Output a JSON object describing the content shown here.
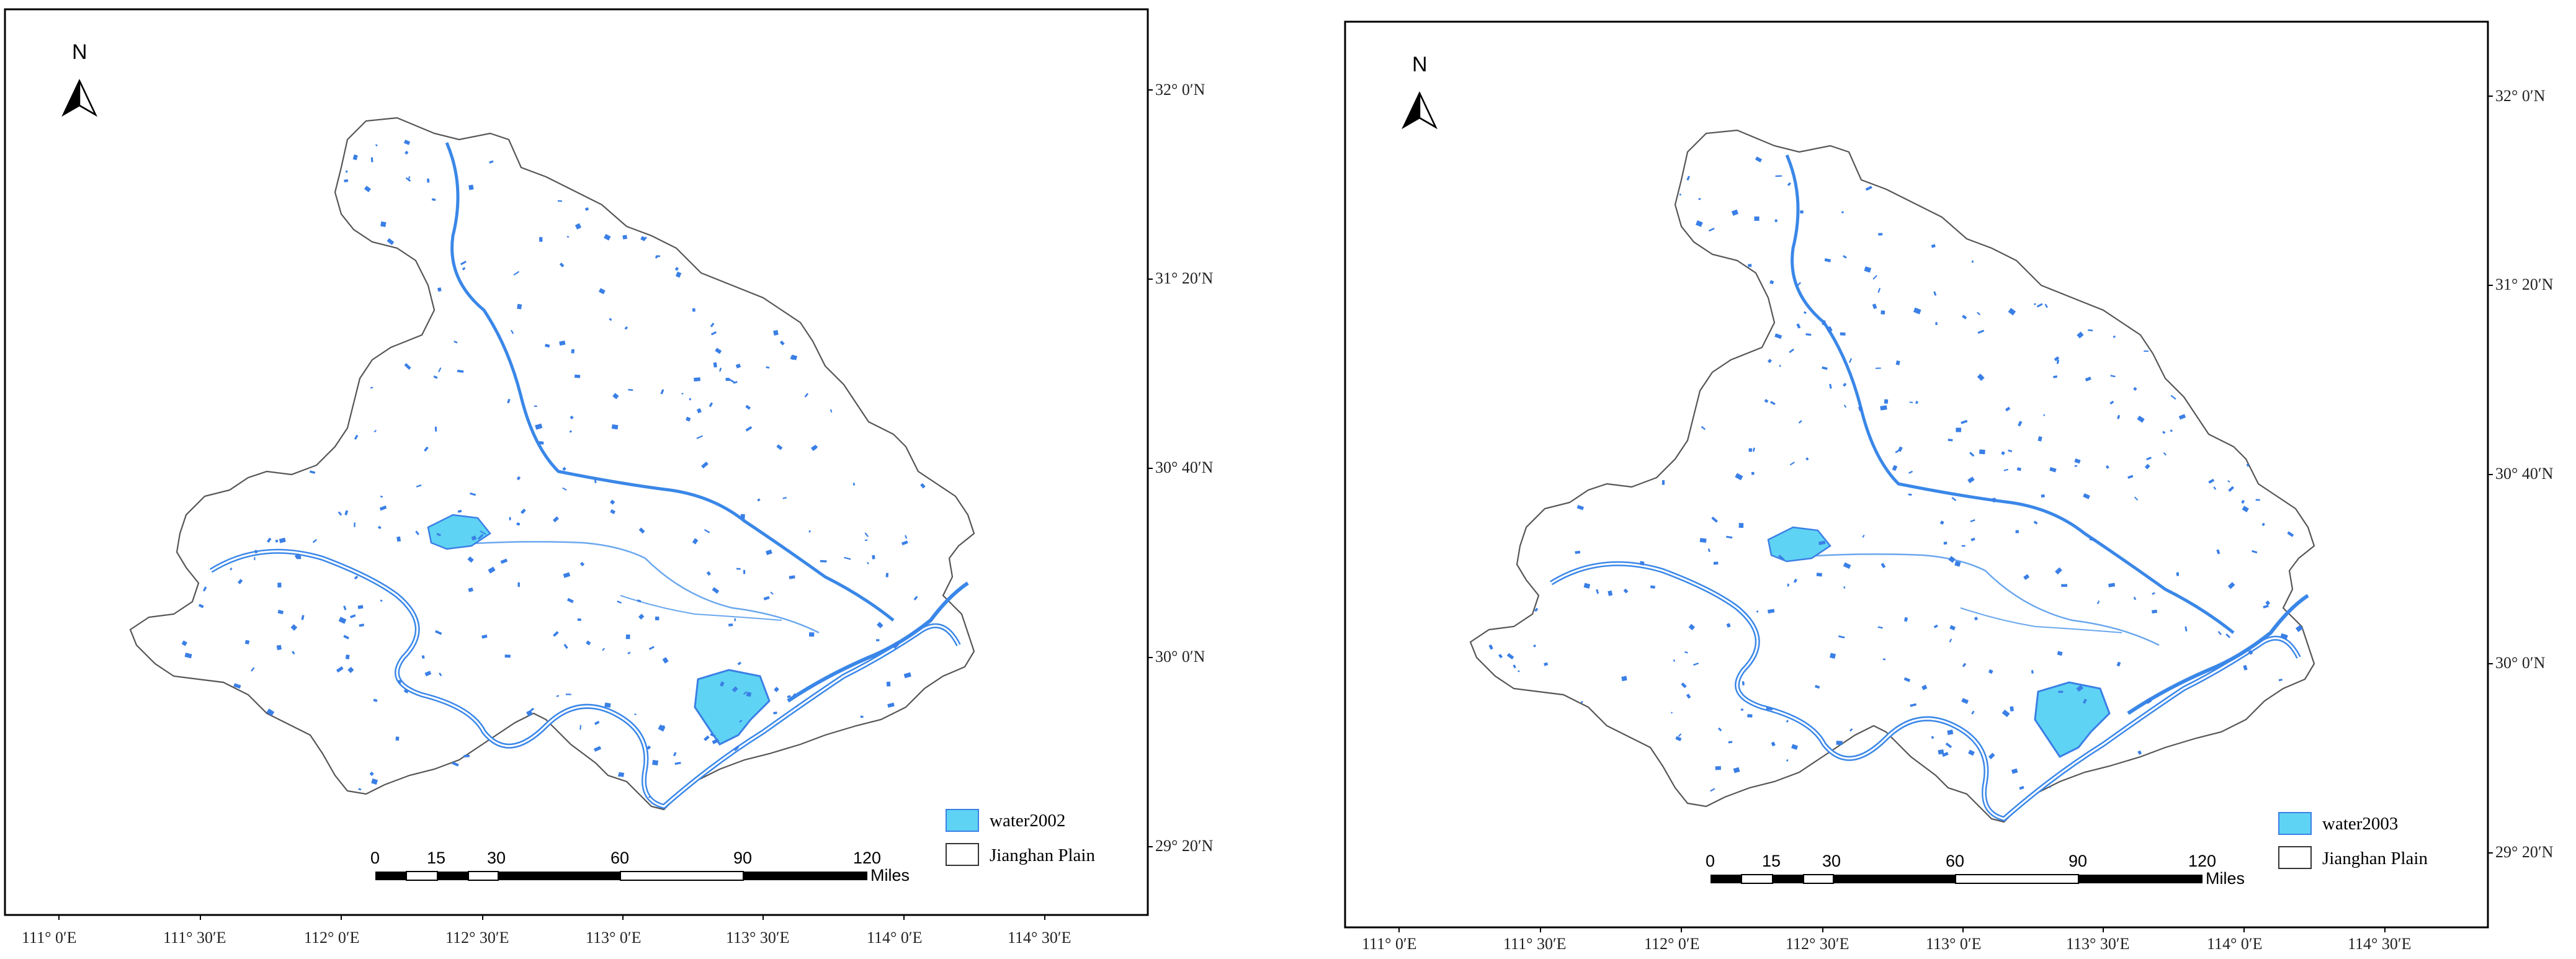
{
  "colors": {
    "water_fill": "#5fd3f3",
    "water_body": "#3a7fe6",
    "river": "#3a87e8",
    "boundary": "#555555",
    "frame": "#000000"
  },
  "icons": {
    "north_arrow": "north-arrow-icon"
  },
  "panels": [
    {
      "north_label": "N",
      "lat_labels": [
        "32° 0′N",
        "31° 20′N",
        "30° 40′N",
        "30° 0′N",
        "29° 20′N"
      ],
      "lon_labels": [
        "111° 0′E",
        "111° 30′E",
        "112° 0′E",
        "112° 30′E",
        "113° 0′E",
        "113° 30′E",
        "114° 0′E",
        "114° 30′E"
      ],
      "scale_ticks": [
        "0",
        "15",
        "30",
        "60",
        "90",
        "120"
      ],
      "scale_unit": "Miles",
      "legend": [
        {
          "label": "water2002",
          "swatch": "water"
        },
        {
          "label": "Jianghan Plain",
          "swatch": "boundary"
        }
      ]
    },
    {
      "north_label": "N",
      "lat_labels": [
        "32° 0′N",
        "31° 20′N",
        "30° 40′N",
        "30° 0′N",
        "29° 20′N"
      ],
      "lon_labels": [
        "111° 0′E",
        "111° 30′E",
        "112° 0′E",
        "112° 30′E",
        "113° 0′E",
        "113° 30′E",
        "114° 0′E",
        "114° 30′E"
      ],
      "scale_ticks": [
        "0",
        "15",
        "30",
        "60",
        "90",
        "120"
      ],
      "scale_unit": "Miles",
      "legend": [
        {
          "label": "water2003",
          "swatch": "water"
        },
        {
          "label": "Jianghan Plain",
          "swatch": "boundary"
        }
      ]
    }
  ]
}
